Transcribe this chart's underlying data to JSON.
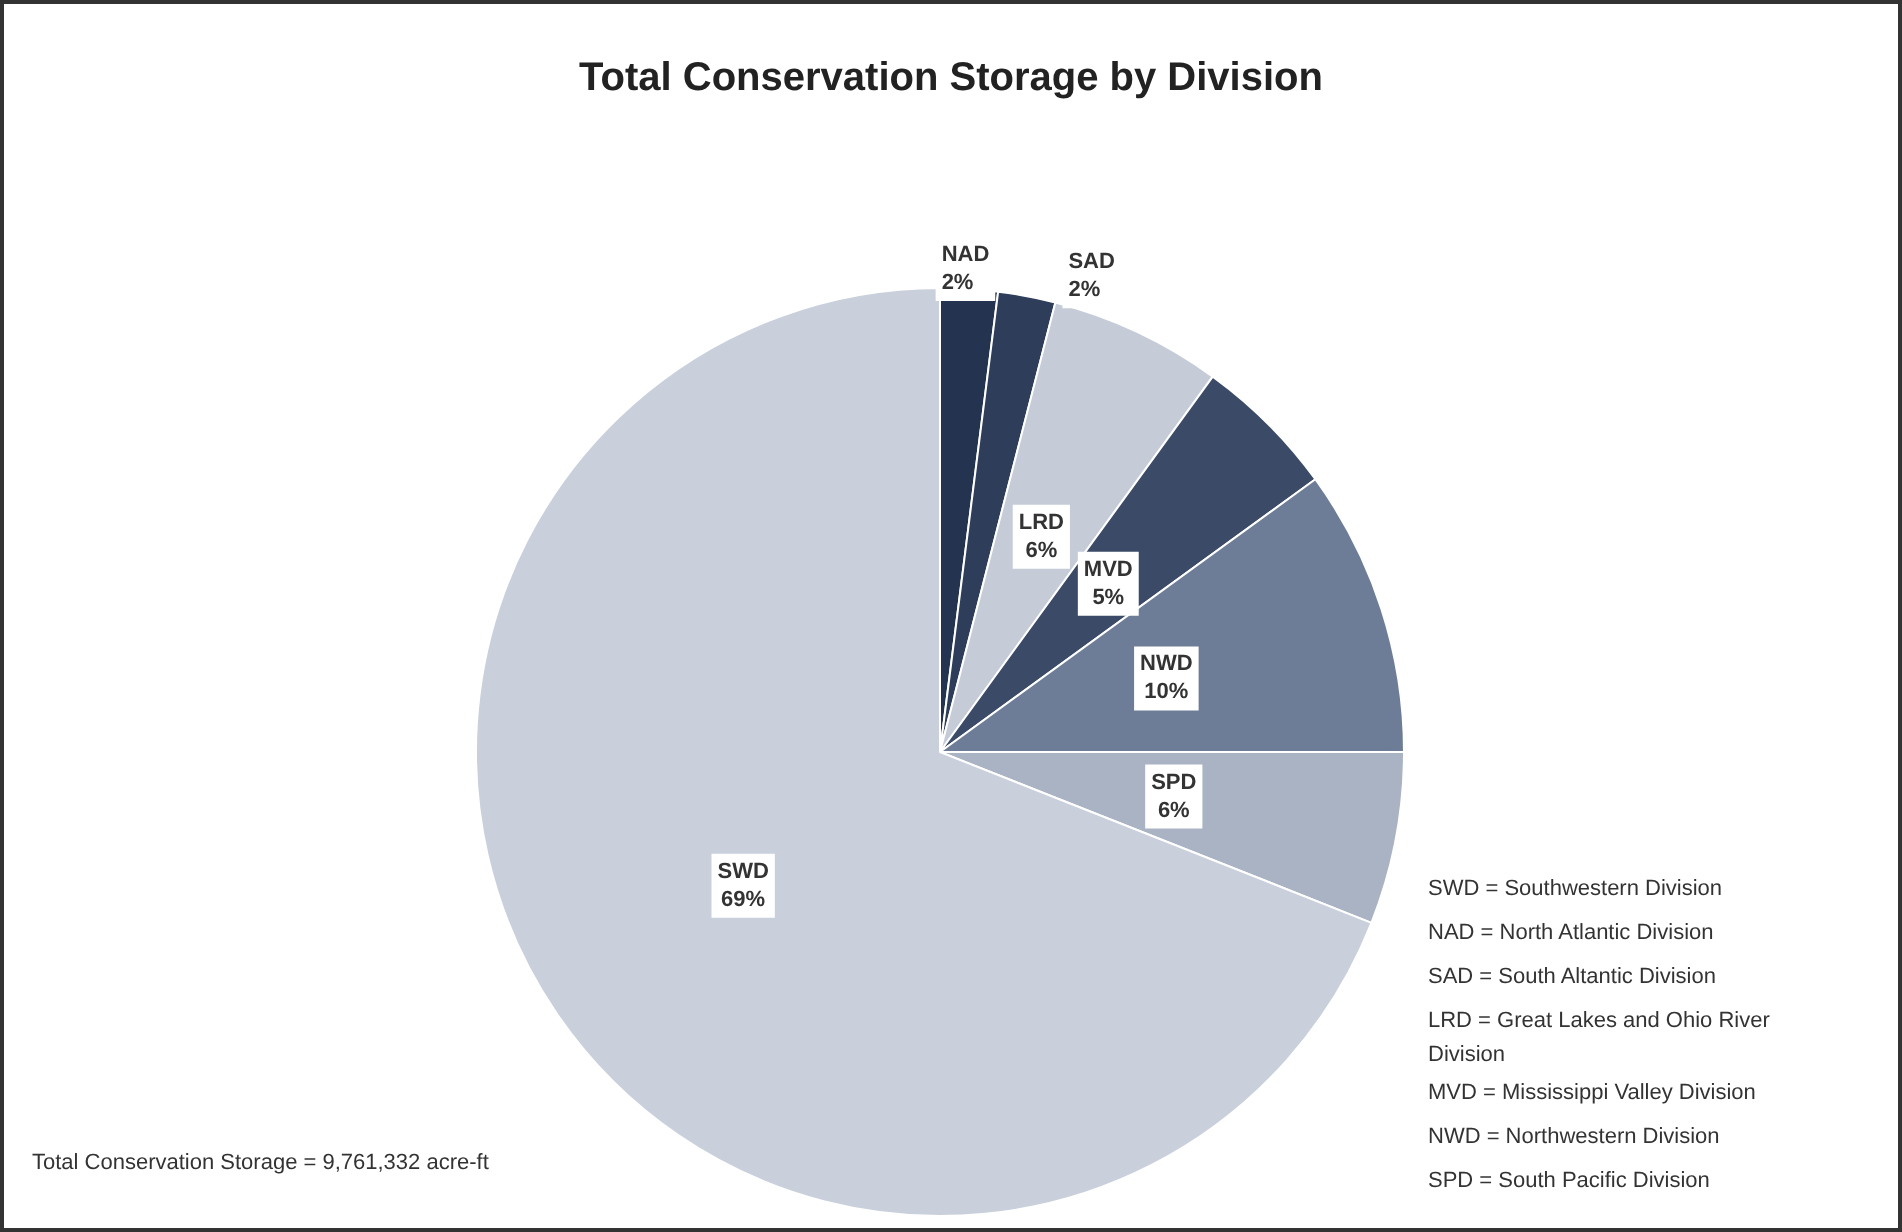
{
  "chart_data": {
    "type": "pie",
    "title": "Total Conservation Storage by Division",
    "categories": [
      "NAD",
      "SAD",
      "LRD",
      "MVD",
      "NWD",
      "SPD",
      "SWD"
    ],
    "values": [
      2,
      2,
      6,
      5,
      10,
      6,
      69
    ],
    "colors": [
      "#243450",
      "#2e3d5a",
      "#c5ccd8",
      "#3b4a66",
      "#6e7d97",
      "#a9b3c4",
      "#c9d0dc"
    ],
    "value_labels": [
      "2%",
      "2%",
      "6%",
      "5%",
      "10%",
      "6%",
      "69%"
    ],
    "legend": false,
    "annotations": [
      "SWD = Southwestern Division",
      "NAD = North Atlantic Division",
      "SAD = South Altantic Division",
      "LRD = Great Lakes and Ohio River Division",
      "MVD = Mississippi Valley Division",
      "NWD = Northwestern Division",
      "SPD = South Pacific Division",
      "Total Conservation Storage = 9,761,332 acre-ft"
    ]
  }
}
